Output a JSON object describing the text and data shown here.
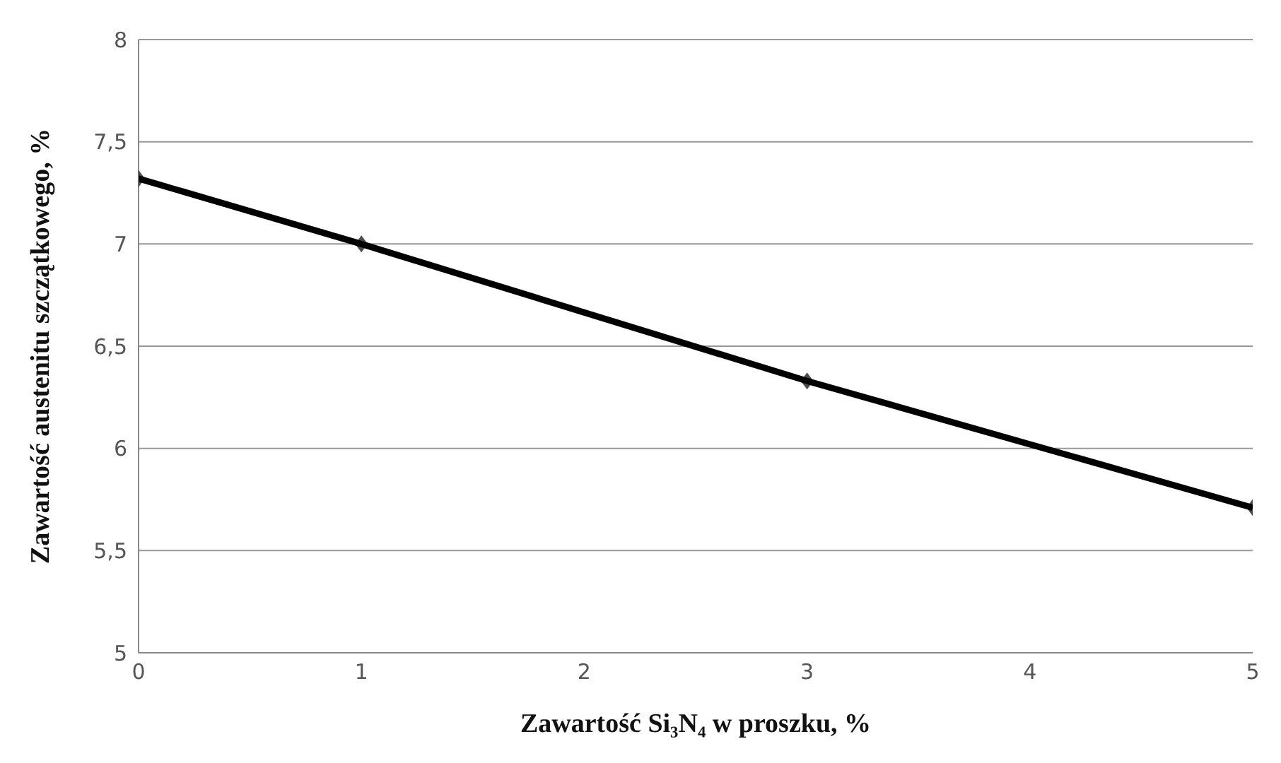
{
  "chart_data": {
    "type": "line",
    "xlabel": "Zawartość Si₃N₄ w proszku, %",
    "ylabel": "Zawartość austenitu szczątkowego, %",
    "x": [
      0,
      1,
      3,
      5
    ],
    "series": [
      {
        "color": "#000000",
        "values": [
          7.32,
          7.0,
          6.33,
          5.71
        ]
      }
    ],
    "xlim": [
      0,
      5
    ],
    "xticks": [
      0,
      1,
      2,
      3,
      4,
      5
    ],
    "ylim": [
      5,
      8
    ],
    "yticks": [
      5,
      {
        "value": 5.5,
        "label": "5,5"
      },
      6,
      {
        "value": 6.5,
        "label": "6,5"
      },
      7,
      {
        "value": 7.5,
        "label": "7,5"
      },
      8
    ],
    "grid": "y",
    "marker": "diamond",
    "line_style": "solid"
  }
}
